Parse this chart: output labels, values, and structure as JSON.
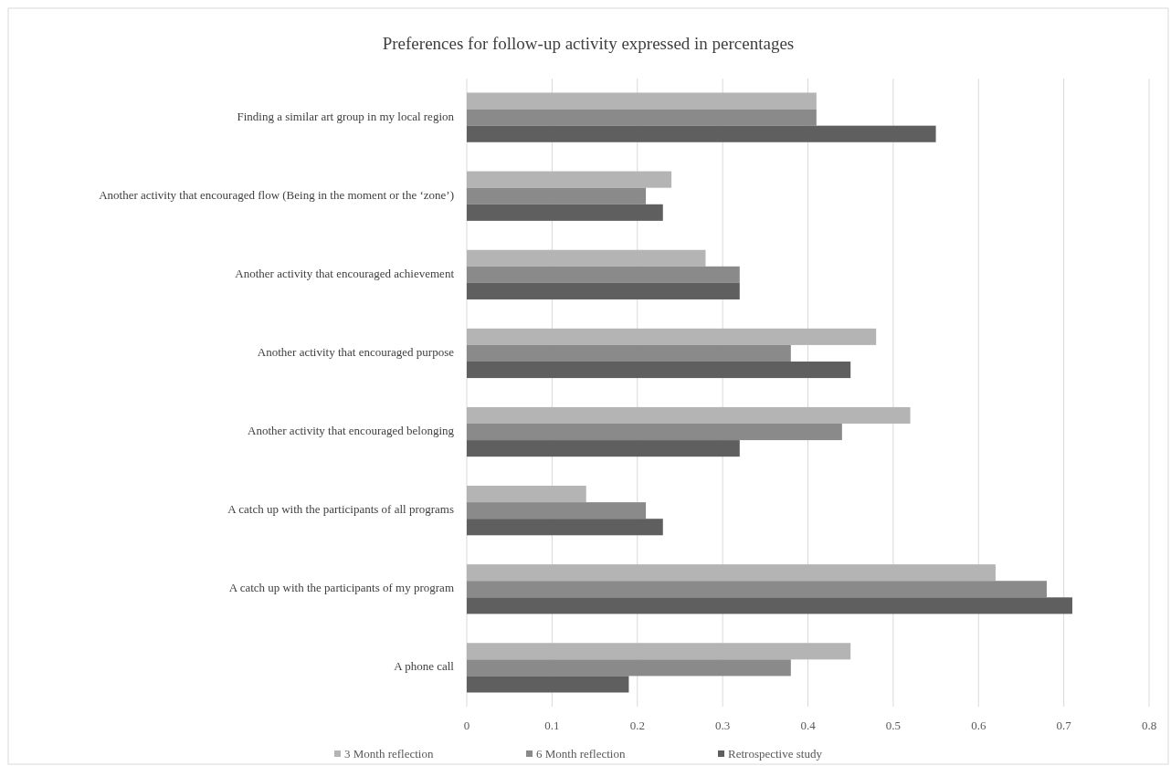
{
  "chart_data": {
    "type": "bar",
    "orientation": "horizontal",
    "title": "Preferences for follow-up activity expressed in percentages",
    "categories": [
      "Finding a similar art group in my local region",
      "Another activity that encouraged flow (Being in the moment or the ‘zone’)",
      "Another activity that encouraged achievement",
      "Another activity that encouraged purpose",
      "Another activity that encouraged belonging",
      "A catch up with the participants of all programs",
      "A catch up with the participants of my program",
      "A phone call"
    ],
    "series": [
      {
        "name": "3 Month reflection",
        "color": "#b4b4b4",
        "values": [
          0.41,
          0.24,
          0.28,
          0.48,
          0.52,
          0.14,
          0.62,
          0.45
        ]
      },
      {
        "name": "6 Month reflection",
        "color": "#8a8a8a",
        "values": [
          0.41,
          0.21,
          0.32,
          0.38,
          0.44,
          0.21,
          0.68,
          0.38
        ]
      },
      {
        "name": "Retrospective study",
        "color": "#5f5f5f",
        "values": [
          0.55,
          0.23,
          0.32,
          0.45,
          0.32,
          0.23,
          0.71,
          0.19
        ]
      }
    ],
    "xlim": [
      0,
      0.8
    ],
    "xticks": [
      0,
      0.1,
      0.2,
      0.3,
      0.4,
      0.5,
      0.6,
      0.7,
      0.8
    ],
    "grid": "x",
    "legend": "bottom"
  }
}
